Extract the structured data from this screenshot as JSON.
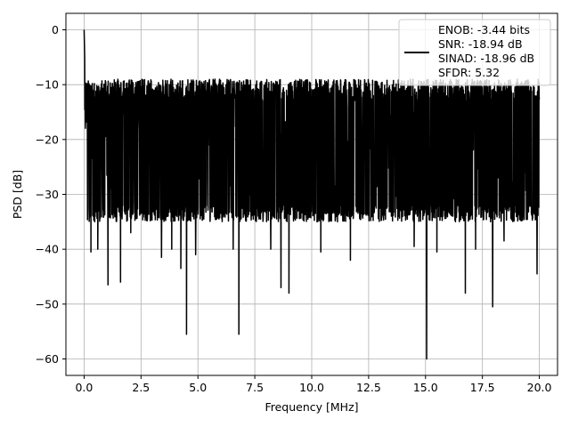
{
  "chart_data": {
    "type": "line",
    "title": "",
    "xlabel": "Frequency [MHz]",
    "ylabel": "PSD [dB]",
    "xlim": [
      -0.8,
      20.8
    ],
    "ylim": [
      -63,
      3
    ],
    "xticks": [
      0.0,
      2.5,
      5.0,
      7.5,
      10.0,
      12.5,
      15.0,
      17.5,
      20.0
    ],
    "xtick_labels": [
      "0.0",
      "2.5",
      "5.0",
      "7.5",
      "10.0",
      "12.5",
      "15.0",
      "17.5",
      "20.0"
    ],
    "yticks": [
      0,
      -10,
      -20,
      -30,
      -40,
      -50,
      -60
    ],
    "ytick_labels": [
      "0",
      "−10",
      "−20",
      "−30",
      "−40",
      "−50",
      "−60"
    ],
    "grid": true,
    "legend_position": "top-right",
    "series": [
      {
        "color": "#000000",
        "legend_lines": [
          "ENOB: -3.44 bits",
          "SNR: -18.94 dB",
          "SINAD: -18.96 dB",
          "SFDR: 5.32"
        ],
        "shape": {
          "freq_range": [
            0,
            20
          ],
          "peak": [
            0.0,
            0.0
          ],
          "noise_band": [
            -33,
            -11
          ],
          "typical_level": -22,
          "notable_dips": [
            [
              0.3,
              -40.5
            ],
            [
              0.6,
              -40.0
            ],
            [
              1.05,
              -46.5
            ],
            [
              1.6,
              -46.0
            ],
            [
              2.05,
              -37.0
            ],
            [
              3.4,
              -41.5
            ],
            [
              3.85,
              -40.0
            ],
            [
              4.25,
              -43.5
            ],
            [
              4.5,
              -55.5
            ],
            [
              4.9,
              -41.0
            ],
            [
              6.55,
              -40.0
            ],
            [
              6.8,
              -55.5
            ],
            [
              8.2,
              -40.0
            ],
            [
              8.65,
              -47.0
            ],
            [
              9.0,
              -48.0
            ],
            [
              10.4,
              -40.5
            ],
            [
              11.7,
              -42.0
            ],
            [
              14.5,
              -39.5
            ],
            [
              15.05,
              -60.0
            ],
            [
              15.5,
              -40.5
            ],
            [
              16.75,
              -48.0
            ],
            [
              17.2,
              -40.0
            ],
            [
              17.95,
              -50.5
            ],
            [
              18.45,
              -38.5
            ],
            [
              19.9,
              -44.5
            ]
          ]
        }
      }
    ]
  }
}
